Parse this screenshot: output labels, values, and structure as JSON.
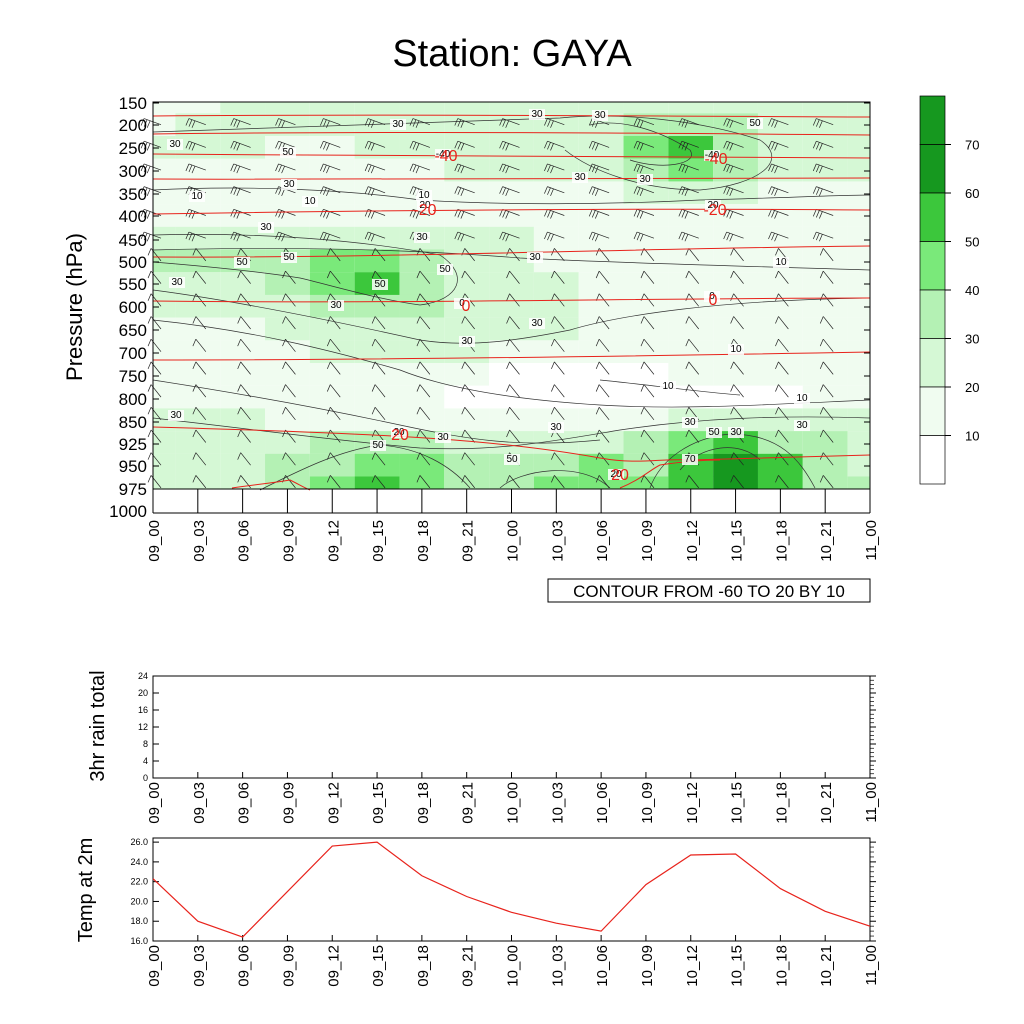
{
  "title": "Station: GAYA",
  "chart_data": [
    {
      "type": "heatmap",
      "ylabel": "Pressure (hPa)",
      "y_ticks": [
        "150",
        "200",
        "250",
        "300",
        "350",
        "400",
        "450",
        "500",
        "550",
        "600",
        "650",
        "700",
        "750",
        "800",
        "850",
        "925",
        "950",
        "975",
        "1000"
      ],
      "x_ticks": [
        "09_00",
        "09_03",
        "09_06",
        "09_09",
        "09_12",
        "09_15",
        "09_18",
        "09_21",
        "10_00",
        "10_03",
        "10_06",
        "10_09",
        "10_12",
        "10_15",
        "10_18",
        "10_21",
        "11_00"
      ],
      "colorbar": {
        "labels": [
          "10",
          "20",
          "30",
          "40",
          "50",
          "60",
          "70"
        ],
        "colors": [
          "#ffffff",
          "#f0fcf0",
          "#d5f8d5",
          "#b4f1b4",
          "#7ae97a",
          "#3cc73c",
          "#16981f"
        ]
      },
      "contour_labels": [
        "30",
        "50",
        "30",
        "30",
        "30",
        "-40",
        "-40",
        "30",
        "30",
        "50",
        "10",
        "30",
        "10",
        "10",
        "20",
        "20",
        "30",
        "30",
        "10",
        "50",
        "50",
        "30",
        "50",
        "30",
        "50",
        "0",
        "30",
        "0",
        "30",
        "30",
        "10",
        "10",
        "10",
        "30",
        "30",
        "20",
        "30",
        "30",
        "30",
        "50",
        "50",
        "50",
        "20",
        "70",
        "30"
      ],
      "grid": [
        [
          1,
          1,
          2,
          2,
          2,
          2,
          2,
          2,
          2,
          2,
          2,
          2,
          2,
          2,
          2,
          2,
          2
        ],
        [
          1,
          2,
          2,
          2,
          2,
          2,
          2,
          2,
          2,
          2,
          2,
          3,
          3,
          3,
          2,
          2,
          2
        ],
        [
          2,
          2,
          2,
          1,
          1,
          2,
          2,
          2,
          2,
          2,
          2,
          4,
          5,
          3,
          2,
          2,
          2
        ],
        [
          1,
          1,
          1,
          1,
          1,
          1,
          1,
          2,
          2,
          2,
          2,
          3,
          4,
          3,
          2,
          2,
          2
        ],
        [
          1,
          1,
          1,
          1,
          1,
          1,
          1,
          1,
          1,
          1,
          1,
          2,
          2,
          2,
          1,
          1,
          1
        ],
        [
          1,
          1,
          1,
          1,
          1,
          1,
          1,
          1,
          1,
          1,
          1,
          1,
          1,
          1,
          1,
          1,
          1
        ],
        [
          2,
          2,
          2,
          2,
          2,
          2,
          2,
          2,
          2,
          1,
          1,
          1,
          1,
          1,
          1,
          1,
          1
        ],
        [
          3,
          3,
          3,
          3,
          4,
          4,
          3,
          2,
          2,
          1,
          1,
          1,
          1,
          1,
          1,
          1,
          1
        ],
        [
          2,
          2,
          2,
          3,
          4,
          5,
          3,
          2,
          2,
          2,
          1,
          1,
          1,
          1,
          1,
          1,
          1
        ],
        [
          2,
          2,
          2,
          2,
          3,
          3,
          3,
          2,
          2,
          2,
          1,
          1,
          1,
          1,
          1,
          1,
          1
        ],
        [
          1,
          1,
          1,
          2,
          2,
          2,
          2,
          2,
          2,
          2,
          1,
          1,
          1,
          1,
          1,
          1,
          1
        ],
        [
          1,
          1,
          1,
          1,
          2,
          2,
          2,
          2,
          1,
          1,
          1,
          1,
          1,
          1,
          1,
          1,
          1
        ],
        [
          1,
          1,
          1,
          1,
          1,
          1,
          1,
          1,
          0,
          0,
          0,
          0,
          1,
          1,
          1,
          1,
          1
        ],
        [
          1,
          1,
          1,
          1,
          1,
          1,
          1,
          0,
          0,
          0,
          0,
          0,
          0,
          0,
          0,
          1,
          1
        ],
        [
          2,
          2,
          2,
          1,
          1,
          1,
          1,
          1,
          1,
          1,
          1,
          1,
          2,
          2,
          2,
          2,
          2
        ],
        [
          2,
          2,
          2,
          2,
          3,
          3,
          3,
          2,
          2,
          2,
          2,
          3,
          4,
          5,
          3,
          3,
          2
        ],
        [
          2,
          2,
          2,
          3,
          3,
          4,
          4,
          3,
          3,
          3,
          4,
          3,
          5,
          6,
          5,
          3,
          2
        ],
        [
          2,
          2,
          2,
          3,
          4,
          5,
          4,
          3,
          3,
          4,
          4,
          4,
          5,
          6,
          5,
          3,
          3
        ],
        [
          2,
          2,
          2,
          3,
          4,
          5,
          4,
          3,
          3,
          4,
          4,
          4,
          5,
          6,
          5,
          3,
          3
        ]
      ],
      "temperature_labels": [
        "-40",
        "-40",
        "-20",
        "-20",
        "0",
        "0",
        "20",
        "20"
      ]
    },
    {
      "type": "line",
      "ylabel": "3hr rain total",
      "y_ticks": [
        "0",
        "4",
        "8",
        "12",
        "16",
        "20",
        "24"
      ],
      "ylim": [
        0,
        24
      ],
      "x_ticks": [
        "09_00",
        "09_03",
        "09_06",
        "09_09",
        "09_12",
        "09_15",
        "09_18",
        "09_21",
        "10_00",
        "10_03",
        "10_06",
        "10_09",
        "10_12",
        "10_15",
        "10_18",
        "10_21",
        "11_00"
      ],
      "values": [
        0,
        0,
        0,
        0,
        0,
        0,
        0,
        0,
        0,
        0,
        0,
        0,
        0,
        0,
        0,
        0,
        0
      ]
    },
    {
      "type": "line",
      "ylabel": "Temp at 2m",
      "y_ticks": [
        "16.0",
        "18.0",
        "20.0",
        "22.0",
        "24.0",
        "26.0"
      ],
      "ylim": [
        16,
        26
      ],
      "x_ticks": [
        "09_00",
        "09_03",
        "09_06",
        "09_09",
        "09_12",
        "09_15",
        "09_18",
        "09_21",
        "10_00",
        "10_03",
        "10_06",
        "10_09",
        "10_12",
        "10_15",
        "10_18",
        "10_21",
        "11_00"
      ],
      "values": [
        22.3,
        18.0,
        16.4,
        21.0,
        25.6,
        26.0,
        22.6,
        20.5,
        18.9,
        17.8,
        17.0,
        21.7,
        24.7,
        24.8,
        21.3,
        19.0,
        17.5
      ],
      "color": "#e8231c"
    }
  ],
  "contour_info": "CONTOUR FROM -60 TO 20 BY 10"
}
